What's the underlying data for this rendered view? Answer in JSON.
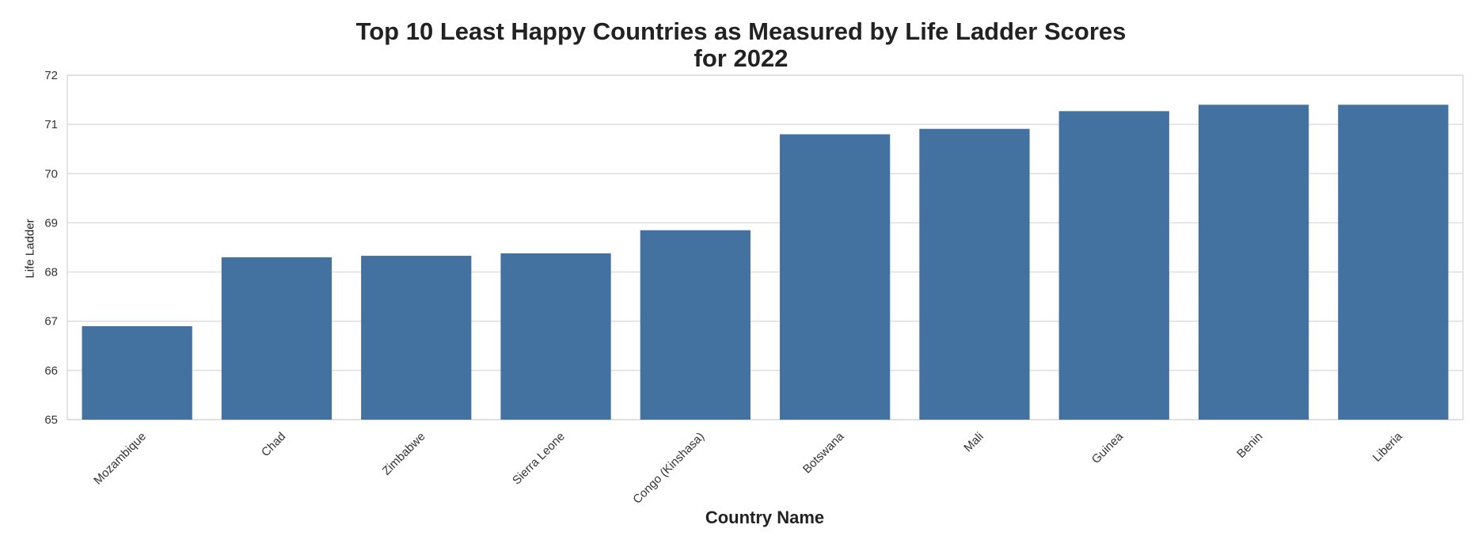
{
  "chart_data": {
    "type": "bar",
    "title": "Top 10 Least Happy Countries as Measured by Life Ladder Scores",
    "subtitle": "for 2022",
    "xlabel": "Country Name",
    "ylabel": "Life Ladder",
    "ylim": [
      65,
      72
    ],
    "yticks": [
      65,
      66,
      67,
      68,
      69,
      70,
      71,
      72
    ],
    "grid": true,
    "categories": [
      "Mozambique",
      "Chad",
      "Zimbabwe",
      "Sierra Leone",
      "Congo (Kinshasa)",
      "Botswana",
      "Mali",
      "Guinea",
      "Benin",
      "Liberia"
    ],
    "values": [
      66.9,
      68.3,
      68.33,
      68.38,
      68.85,
      70.8,
      70.91,
      71.27,
      71.4,
      71.4
    ],
    "bar_color": "#4472a0",
    "grid_color": "#d5d8dc",
    "frame_color": "#cfd3d8"
  }
}
